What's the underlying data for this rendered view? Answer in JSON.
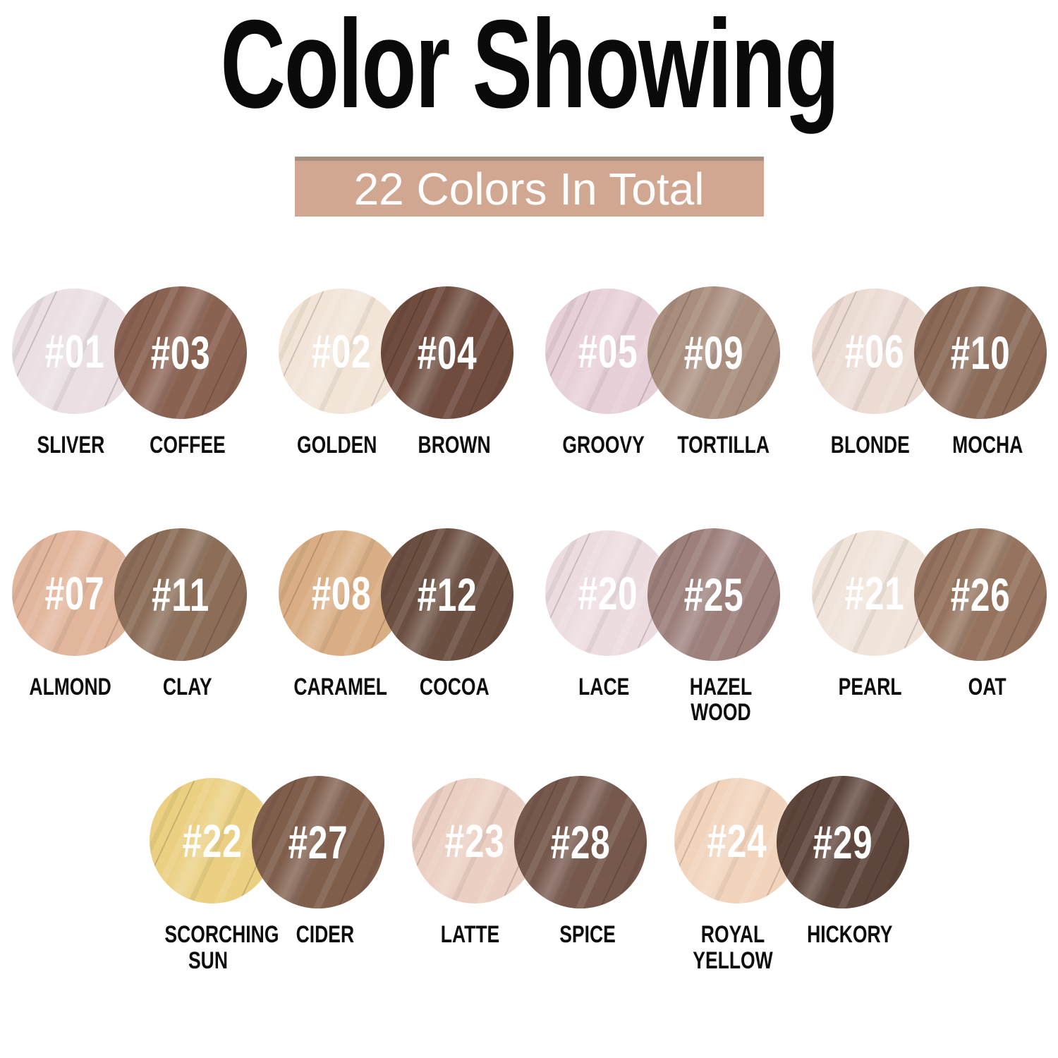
{
  "title": "Color Showing",
  "banner": {
    "text": "22 Colors In Total",
    "background": "#d2a791",
    "top_edge_color": "#a8907e",
    "text_color": "#ffffff"
  },
  "page_background": "#ffffff",
  "number_text_color": "#ffffff",
  "label_text_color": "#0d0d0d",
  "rows": [
    {
      "pairs": [
        {
          "left": {
            "number": "#01",
            "name": "SLIVER",
            "color": "#eadfe2"
          },
          "right": {
            "number": "#03",
            "name": "COFFEE",
            "color": "#8a6252"
          }
        },
        {
          "left": {
            "number": "#02",
            "name": "GOLDEN",
            "color": "#f2e5d7"
          },
          "right": {
            "number": "#04",
            "name": "BROWN",
            "color": "#6f4c3e"
          }
        },
        {
          "left": {
            "number": "#05",
            "name": "GROOVY",
            "color": "#e6cfd6"
          },
          "right": {
            "number": "#09",
            "name": "TORTILLA",
            "color": "#a98e7e"
          }
        },
        {
          "left": {
            "number": "#06",
            "name": "BLONDE",
            "color": "#ecdbd3"
          },
          "right": {
            "number": "#10",
            "name": "MOCHA",
            "color": "#8b6a58"
          }
        }
      ]
    },
    {
      "pairs": [
        {
          "left": {
            "number": "#07",
            "name": "ALMOND",
            "color": "#e2b69c"
          },
          "right": {
            "number": "#11",
            "name": "CLAY",
            "color": "#8b6d58"
          }
        },
        {
          "left": {
            "number": "#08",
            "name": "CARAMEL",
            "color": "#d9ae84"
          },
          "right": {
            "number": "#12",
            "name": "COCOA",
            "color": "#6b4f41"
          }
        },
        {
          "left": {
            "number": "#20",
            "name": "LACE",
            "color": "#ecdce0"
          },
          "right": {
            "number": "#25",
            "name": "HAZEL WOOD",
            "color": "#9d807c"
          }
        },
        {
          "left": {
            "number": "#21",
            "name": "PEARL",
            "color": "#f0e4da"
          },
          "right": {
            "number": "#26",
            "name": "OAT",
            "color": "#95735e"
          }
        }
      ]
    },
    {
      "pairs": [
        {
          "left": {
            "number": "#22",
            "name": "SCORCHING SUN",
            "color": "#ebd083"
          },
          "right": {
            "number": "#27",
            "name": "CIDER",
            "color": "#7f5e4c"
          }
        },
        {
          "left": {
            "number": "#23",
            "name": "LATTE",
            "color": "#ebcfc2"
          },
          "right": {
            "number": "#28",
            "name": "SPICE",
            "color": "#76584d"
          }
        },
        {
          "left": {
            "number": "#24",
            "name": "ROYAL YELLOW",
            "color": "#f2d4bd"
          },
          "right": {
            "number": "#29",
            "name": "HICKORY",
            "color": "#5f463c"
          }
        }
      ]
    }
  ]
}
